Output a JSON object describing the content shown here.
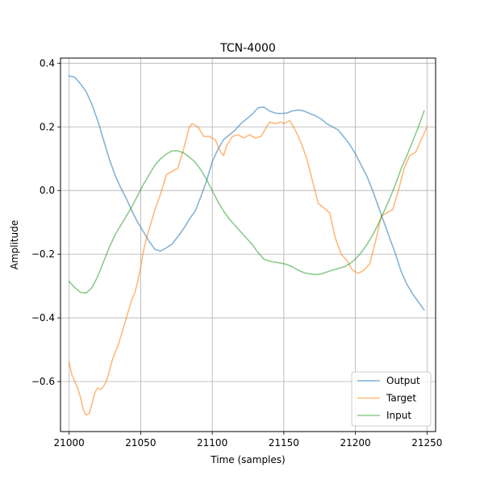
{
  "chart_data": {
    "type": "line",
    "title": "TCN-4000",
    "xlabel": "Time (samples)",
    "ylabel": "Amplitude",
    "xlim": [
      20994,
      21256
    ],
    "ylim": [
      -0.757,
      0.416
    ],
    "xticks": [
      21000,
      21050,
      21100,
      21150,
      21200,
      21250
    ],
    "yticks": [
      -0.6,
      -0.4,
      -0.2,
      0.0,
      0.2,
      0.4
    ],
    "xtick_labels": [
      "21000",
      "21050",
      "21100",
      "21150",
      "21200",
      "21250"
    ],
    "ytick_labels": [
      "−0.6",
      "−0.4",
      "−0.2",
      "0.0",
      "0.2",
      "0.4"
    ],
    "grid": true,
    "legend": "lower-right",
    "series": [
      {
        "name": "Output",
        "color": "#1f77b4",
        "points": [
          [
            21000,
            0.36
          ],
          [
            21004,
            0.356
          ],
          [
            21008,
            0.335
          ],
          [
            21012,
            0.31
          ],
          [
            21016,
            0.27
          ],
          [
            21020,
            0.22
          ],
          [
            21024,
            0.16
          ],
          [
            21028,
            0.1
          ],
          [
            21032,
            0.05
          ],
          [
            21036,
            0.01
          ],
          [
            21040,
            -0.025
          ],
          [
            21044,
            -0.065
          ],
          [
            21048,
            -0.1
          ],
          [
            21052,
            -0.13
          ],
          [
            21056,
            -0.16
          ],
          [
            21060,
            -0.185
          ],
          [
            21064,
            -0.19
          ],
          [
            21068,
            -0.18
          ],
          [
            21072,
            -0.168
          ],
          [
            21076,
            -0.145
          ],
          [
            21080,
            -0.12
          ],
          [
            21084,
            -0.09
          ],
          [
            21088,
            -0.065
          ],
          [
            21092,
            -0.02
          ],
          [
            21096,
            0.03
          ],
          [
            21100,
            0.09
          ],
          [
            21104,
            0.13
          ],
          [
            21108,
            0.16
          ],
          [
            21112,
            0.175
          ],
          [
            21116,
            0.19
          ],
          [
            21120,
            0.21
          ],
          [
            21124,
            0.225
          ],
          [
            21128,
            0.24
          ],
          [
            21132,
            0.26
          ],
          [
            21136,
            0.262
          ],
          [
            21140,
            0.25
          ],
          [
            21144,
            0.243
          ],
          [
            21148,
            0.242
          ],
          [
            21152,
            0.243
          ],
          [
            21156,
            0.25
          ],
          [
            21160,
            0.253
          ],
          [
            21164,
            0.25
          ],
          [
            21168,
            0.242
          ],
          [
            21172,
            0.235
          ],
          [
            21176,
            0.225
          ],
          [
            21180,
            0.21
          ],
          [
            21184,
            0.2
          ],
          [
            21188,
            0.19
          ],
          [
            21192,
            0.168
          ],
          [
            21196,
            0.145
          ],
          [
            21200,
            0.115
          ],
          [
            21204,
            0.08
          ],
          [
            21208,
            0.045
          ],
          [
            21212,
            0.0
          ],
          [
            21216,
            -0.05
          ],
          [
            21220,
            -0.1
          ],
          [
            21224,
            -0.15
          ],
          [
            21228,
            -0.2
          ],
          [
            21232,
            -0.255
          ],
          [
            21236,
            -0.295
          ],
          [
            21240,
            -0.325
          ],
          [
            21244,
            -0.35
          ],
          [
            21248,
            -0.375
          ]
        ]
      },
      {
        "name": "Target",
        "color": "#ff7f0e",
        "points": [
          [
            21000,
            -0.54
          ],
          [
            21002,
            -0.58
          ],
          [
            21004,
            -0.6
          ],
          [
            21006,
            -0.62
          ],
          [
            21008,
            -0.65
          ],
          [
            21010,
            -0.69
          ],
          [
            21012,
            -0.705
          ],
          [
            21014,
            -0.7
          ],
          [
            21016,
            -0.67
          ],
          [
            21018,
            -0.635
          ],
          [
            21020,
            -0.62
          ],
          [
            21022,
            -0.625
          ],
          [
            21024,
            -0.615
          ],
          [
            21026,
            -0.6
          ],
          [
            21028,
            -0.57
          ],
          [
            21030,
            -0.535
          ],
          [
            21032,
            -0.51
          ],
          [
            21034,
            -0.49
          ],
          [
            21036,
            -0.46
          ],
          [
            21038,
            -0.43
          ],
          [
            21040,
            -0.4
          ],
          [
            21042,
            -0.37
          ],
          [
            21044,
            -0.34
          ],
          [
            21046,
            -0.32
          ],
          [
            21048,
            -0.285
          ],
          [
            21050,
            -0.24
          ],
          [
            21052,
            -0.19
          ],
          [
            21054,
            -0.15
          ],
          [
            21056,
            -0.12
          ],
          [
            21058,
            -0.09
          ],
          [
            21060,
            -0.06
          ],
          [
            21064,
            -0.01
          ],
          [
            21068,
            0.05
          ],
          [
            21072,
            0.06
          ],
          [
            21076,
            0.07
          ],
          [
            21080,
            0.13
          ],
          [
            21084,
            0.2
          ],
          [
            21086,
            0.21
          ],
          [
            21090,
            0.2
          ],
          [
            21094,
            0.17
          ],
          [
            21098,
            0.17
          ],
          [
            21102,
            0.16
          ],
          [
            21106,
            0.12
          ],
          [
            21108,
            0.11
          ],
          [
            21110,
            0.14
          ],
          [
            21114,
            0.17
          ],
          [
            21118,
            0.175
          ],
          [
            21122,
            0.165
          ],
          [
            21126,
            0.175
          ],
          [
            21130,
            0.165
          ],
          [
            21134,
            0.17
          ],
          [
            21138,
            0.2
          ],
          [
            21140,
            0.215
          ],
          [
            21144,
            0.21
          ],
          [
            21148,
            0.215
          ],
          [
            21150,
            0.21
          ],
          [
            21154,
            0.22
          ],
          [
            21158,
            0.19
          ],
          [
            21162,
            0.15
          ],
          [
            21166,
            0.1
          ],
          [
            21170,
            0.03
          ],
          [
            21174,
            -0.04
          ],
          [
            21178,
            -0.055
          ],
          [
            21182,
            -0.07
          ],
          [
            21186,
            -0.15
          ],
          [
            21190,
            -0.2
          ],
          [
            21194,
            -0.22
          ],
          [
            21198,
            -0.25
          ],
          [
            21202,
            -0.26
          ],
          [
            21206,
            -0.25
          ],
          [
            21210,
            -0.23
          ],
          [
            21214,
            -0.16
          ],
          [
            21218,
            -0.08
          ],
          [
            21222,
            -0.07
          ],
          [
            21226,
            -0.06
          ],
          [
            21230,
            0.0
          ],
          [
            21234,
            0.07
          ],
          [
            21238,
            0.11
          ],
          [
            21242,
            0.12
          ],
          [
            21246,
            0.16
          ],
          [
            21250,
            0.2
          ]
        ]
      },
      {
        "name": "Input",
        "color": "#2ca02c",
        "points": [
          [
            21000,
            -0.285
          ],
          [
            21004,
            -0.305
          ],
          [
            21008,
            -0.32
          ],
          [
            21012,
            -0.322
          ],
          [
            21016,
            -0.305
          ],
          [
            21020,
            -0.27
          ],
          [
            21024,
            -0.225
          ],
          [
            21028,
            -0.18
          ],
          [
            21032,
            -0.14
          ],
          [
            21036,
            -0.11
          ],
          [
            21040,
            -0.08
          ],
          [
            21044,
            -0.05
          ],
          [
            21048,
            -0.015
          ],
          [
            21052,
            0.02
          ],
          [
            21056,
            0.05
          ],
          [
            21060,
            0.08
          ],
          [
            21064,
            0.1
          ],
          [
            21068,
            0.115
          ],
          [
            21072,
            0.125
          ],
          [
            21076,
            0.125
          ],
          [
            21080,
            0.118
          ],
          [
            21084,
            0.105
          ],
          [
            21088,
            0.09
          ],
          [
            21092,
            0.065
          ],
          [
            21096,
            0.035
          ],
          [
            21100,
            0.0
          ],
          [
            21104,
            -0.035
          ],
          [
            21108,
            -0.065
          ],
          [
            21112,
            -0.09
          ],
          [
            21116,
            -0.11
          ],
          [
            21120,
            -0.13
          ],
          [
            21124,
            -0.15
          ],
          [
            21128,
            -0.17
          ],
          [
            21132,
            -0.195
          ],
          [
            21136,
            -0.215
          ],
          [
            21140,
            -0.222
          ],
          [
            21144,
            -0.225
          ],
          [
            21148,
            -0.228
          ],
          [
            21152,
            -0.232
          ],
          [
            21156,
            -0.24
          ],
          [
            21160,
            -0.25
          ],
          [
            21164,
            -0.258
          ],
          [
            21168,
            -0.262
          ],
          [
            21172,
            -0.264
          ],
          [
            21176,
            -0.262
          ],
          [
            21180,
            -0.256
          ],
          [
            21184,
            -0.25
          ],
          [
            21188,
            -0.245
          ],
          [
            21192,
            -0.24
          ],
          [
            21196,
            -0.23
          ],
          [
            21200,
            -0.215
          ],
          [
            21204,
            -0.195
          ],
          [
            21208,
            -0.17
          ],
          [
            21212,
            -0.14
          ],
          [
            21216,
            -0.105
          ],
          [
            21220,
            -0.065
          ],
          [
            21224,
            -0.025
          ],
          [
            21228,
            0.02
          ],
          [
            21232,
            0.07
          ],
          [
            21236,
            0.11
          ],
          [
            21240,
            0.155
          ],
          [
            21244,
            0.2
          ],
          [
            21248,
            0.25
          ]
        ]
      }
    ]
  }
}
